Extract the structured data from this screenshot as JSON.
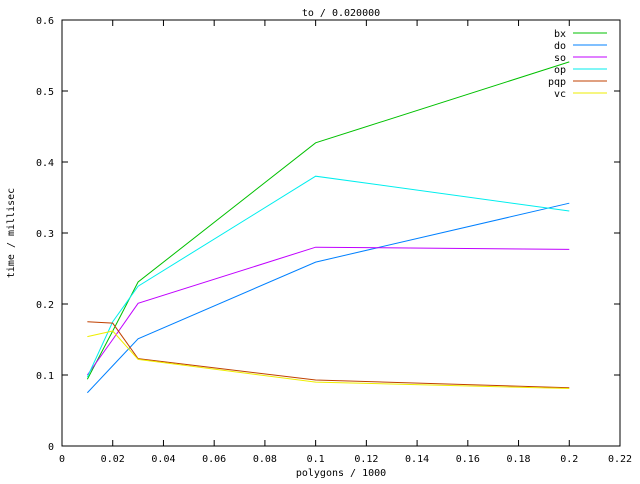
{
  "chart_data": {
    "type": "line",
    "title": "to / 0.020000",
    "xlabel": "polygons / 1000",
    "ylabel": "time / millisec",
    "xlim": [
      0,
      0.22
    ],
    "ylim": [
      0,
      0.6
    ],
    "xticks": [
      "0",
      "0.02",
      "0.04",
      "0.06",
      "0.08",
      "0.1",
      "0.12",
      "0.14",
      "0.16",
      "0.18",
      "0.2",
      "0.22"
    ],
    "yticks": [
      "0",
      "0.1",
      "0.2",
      "0.3",
      "0.4",
      "0.5",
      "0.6"
    ],
    "grid": false,
    "legend_position": "top-right",
    "x": [
      0.01,
      0.02,
      0.03,
      0.1,
      0.2
    ],
    "series": [
      {
        "name": "bx",
        "color": "#00c000",
        "values": [
          0.094,
          0.162,
          0.231,
          0.427,
          0.541
        ]
      },
      {
        "name": "do",
        "color": "#0080ff",
        "values": [
          0.075,
          0.113,
          0.151,
          0.259,
          0.342
        ]
      },
      {
        "name": "so",
        "color": "#c000ff",
        "values": [
          0.1,
          0.15,
          0.201,
          0.28,
          0.277
        ]
      },
      {
        "name": "op",
        "color": "#00eeee",
        "values": [
          0.097,
          0.175,
          0.225,
          0.38,
          0.331
        ]
      },
      {
        "name": "pqp",
        "color": "#c04000",
        "values": [
          0.175,
          0.173,
          0.123,
          0.093,
          0.082
        ]
      },
      {
        "name": "vc",
        "color": "#eeee00",
        "values": [
          0.154,
          0.162,
          0.122,
          0.09,
          0.081
        ]
      }
    ]
  }
}
